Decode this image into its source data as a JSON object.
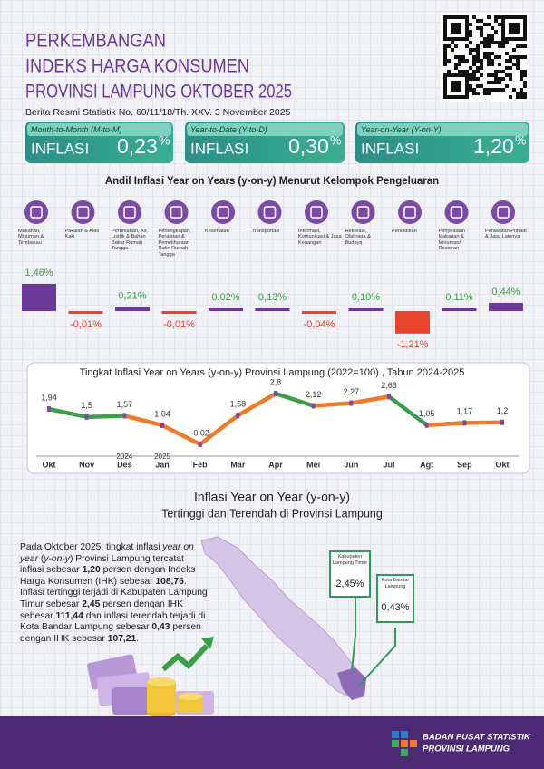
{
  "header": {
    "title_lines": [
      "PERKEMBANGAN",
      "INDEKS HARGA KONSUMEN",
      "PROVINSI LAMPUNG OKTOBER 2025"
    ],
    "subtitle": "Berita Resmi Statistik No. 60/11/18/Th. XXV. 3 November 2025"
  },
  "cards": [
    {
      "period": "Month-to-Month (M-to-M)",
      "label": "INFLASI",
      "value": "0,23",
      "unit": "%"
    },
    {
      "period": "Year-to-Date (Y-to-D)",
      "label": "INFLASI",
      "value": "0,30",
      "unit": "%"
    },
    {
      "period": "Year-on-Year (Y-on-Y)",
      "label": "INFLASI",
      "value": "1,20",
      "unit": "%"
    }
  ],
  "chart_data": [
    {
      "type": "bar",
      "title": "Andil Inflasi Year on Years (y-on-y) Menurut Kelompok Pengeluaran",
      "categories": [
        "Makanan, Minuman & Tembakau",
        "Pakaian & Alas Kaki",
        "Perumahan, Air, Listrik & Bahan Bakar Rumah Tangga",
        "Perlengkapan, Peralatan & Pemeliharaan Rutin Rumah Tangga",
        "Kesehatan",
        "Transportasi",
        "Informasi, Komunikasi & Jasa Keuangan",
        "Rekreasi, Olahraga & Budaya",
        "Pendidikan",
        "Penyediaan Makanan & Minuman/ Restoran",
        "Perawatan Pribadi & Jasa Lainnya"
      ],
      "values": [
        1.46,
        -0.01,
        0.21,
        -0.01,
        0.02,
        0.13,
        -0.04,
        0.1,
        -1.21,
        0.11,
        0.44
      ],
      "value_labels": [
        "1,46%",
        "-0,01%",
        "0,21%",
        "-0,01%",
        "0,02%",
        "0,13%",
        "-0,04%",
        "0,10%",
        "-1,21%",
        "0,11%",
        "0,44%"
      ],
      "colors": {
        "positive": "#6b3a99",
        "negative": "#e8452f"
      }
    },
    {
      "type": "line",
      "title": "Tingkat Inflasi Year on Years (y-on-y) Provinsi Lampung (2022=100) , Tahun 2024-2025",
      "categories": [
        "Okt",
        "Nov",
        "Des",
        "Jan",
        "Feb",
        "Mar",
        "Apr",
        "Mei",
        "Jun",
        "Jul",
        "Agt",
        "Sep",
        "Okt"
      ],
      "years": [
        null,
        null,
        "2024",
        "2025",
        null,
        null,
        null,
        null,
        null,
        null,
        null,
        null,
        null
      ],
      "values": [
        1.94,
        1.5,
        1.57,
        1.04,
        -0.02,
        1.58,
        2.8,
        2.12,
        2.27,
        2.63,
        1.05,
        1.17,
        1.2
      ],
      "value_labels": [
        "1,94",
        "1,5",
        "1,57",
        "1,04",
        "-0,02",
        "1,58",
        "2,8",
        "2,12",
        "2,27",
        "2,63",
        "1,05",
        "1,17",
        "1,2"
      ],
      "segment_colors": [
        "#3a9f48",
        "#3a9f48",
        "#f07a28",
        "#f07a28",
        "#f07a28",
        "#f07a28",
        "#3a9f48",
        "#f07a28",
        "#f07a28",
        "#3a9f48",
        "#f07a28",
        "#f07a28"
      ],
      "marker_color": "#7b4aa6"
    }
  ],
  "map_section": {
    "title": "Inflasi Year on Year (y-on-y)",
    "subtitle": "Tertinggi dan Terendah di Provinsi Lampung",
    "paragraph": [
      {
        "text": "Pada Oktober 2025, tingkat inflasi "
      },
      {
        "text": "year on year",
        "style": "italic"
      },
      {
        "text": " ("
      },
      {
        "text": "y-on-y",
        "style": "italic"
      },
      {
        "text": ") Provinsi Lampung tercatat inflasi sebesar "
      },
      {
        "text": "1,20",
        "style": "bold"
      },
      {
        "text": " persen dengan Indeks Harga Konsumen (IHK) sebesar "
      },
      {
        "text": "108,76",
        "style": "bold"
      },
      {
        "text": ". Inflasi tertinggi terjadi di Kabupaten Lampung Timur sebesar "
      },
      {
        "text": "2,45",
        "style": "bold"
      },
      {
        "text": " persen dengan IHK sebesar "
      },
      {
        "text": "111,44",
        "style": "bold"
      },
      {
        "text": " dan inflasi terendah terjadi di Kota Bandar Lampung sebesar "
      },
      {
        "text": "0,43",
        "style": "bold"
      },
      {
        "text": " persen dengan IHK sebesar "
      },
      {
        "text": "107,21",
        "style": "bold"
      },
      {
        "text": "."
      }
    ],
    "callouts": [
      {
        "region": "Kabupaten Lampung Timur",
        "value": "2,45%"
      },
      {
        "region": "Kota Bandar Lampung",
        "value": "0,43%"
      }
    ]
  },
  "footer": {
    "org": "BADAN PUSAT STATISTIK",
    "region": "PROVINSI LAMPUNG"
  }
}
